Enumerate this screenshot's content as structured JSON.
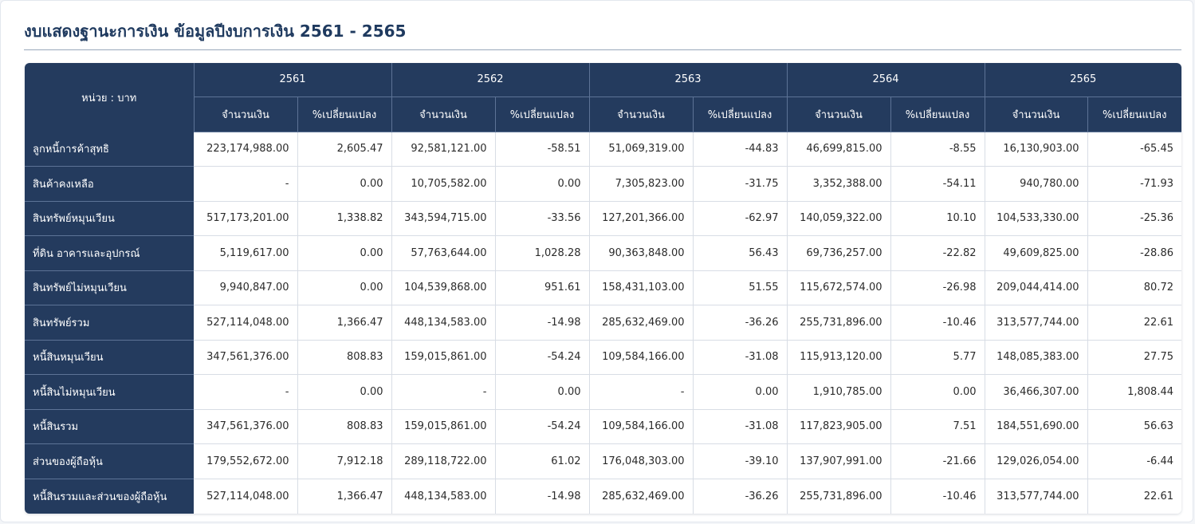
{
  "title": "งบแสดงฐานะการเงิน ข้อมูลปีงบการเงิน 2561 - 2565",
  "table": {
    "unit_label": "หน่วย : บาท",
    "years": [
      "2561",
      "2562",
      "2563",
      "2564",
      "2565"
    ],
    "sub_headers": {
      "amount": "จำนวนเงิน",
      "change": "%เปลี่ยนแปลง"
    },
    "rows": [
      {
        "label": "ลูกหนี้การค้าสุทธิ",
        "cells": [
          "223,174,988.00",
          "2,605.47",
          "92,581,121.00",
          "-58.51",
          "51,069,319.00",
          "-44.83",
          "46,699,815.00",
          "-8.55",
          "16,130,903.00",
          "-65.45"
        ]
      },
      {
        "label": "สินค้าคงเหลือ",
        "cells": [
          "-",
          "0.00",
          "10,705,582.00",
          "0.00",
          "7,305,823.00",
          "-31.75",
          "3,352,388.00",
          "-54.11",
          "940,780.00",
          "-71.93"
        ]
      },
      {
        "label": "สินทรัพย์หมุนเวียน",
        "cells": [
          "517,173,201.00",
          "1,338.82",
          "343,594,715.00",
          "-33.56",
          "127,201,366.00",
          "-62.97",
          "140,059,322.00",
          "10.10",
          "104,533,330.00",
          "-25.36"
        ]
      },
      {
        "label": "ที่ดิน อาคารและอุปกรณ์",
        "cells": [
          "5,119,617.00",
          "0.00",
          "57,763,644.00",
          "1,028.28",
          "90,363,848.00",
          "56.43",
          "69,736,257.00",
          "-22.82",
          "49,609,825.00",
          "-28.86"
        ]
      },
      {
        "label": "สินทรัพย์ไม่หมุนเวียน",
        "cells": [
          "9,940,847.00",
          "0.00",
          "104,539,868.00",
          "951.61",
          "158,431,103.00",
          "51.55",
          "115,672,574.00",
          "-26.98",
          "209,044,414.00",
          "80.72"
        ]
      },
      {
        "label": "สินทรัพย์รวม",
        "cells": [
          "527,114,048.00",
          "1,366.47",
          "448,134,583.00",
          "-14.98",
          "285,632,469.00",
          "-36.26",
          "255,731,896.00",
          "-10.46",
          "313,577,744.00",
          "22.61"
        ]
      },
      {
        "label": "หนี้สินหมุนเวียน",
        "cells": [
          "347,561,376.00",
          "808.83",
          "159,015,861.00",
          "-54.24",
          "109,584,166.00",
          "-31.08",
          "115,913,120.00",
          "5.77",
          "148,085,383.00",
          "27.75"
        ]
      },
      {
        "label": "หนี้สินไม่หมุนเวียน",
        "cells": [
          "-",
          "0.00",
          "-",
          "0.00",
          "-",
          "0.00",
          "1,910,785.00",
          "0.00",
          "36,466,307.00",
          "1,808.44"
        ]
      },
      {
        "label": "หนี้สินรวม",
        "cells": [
          "347,561,376.00",
          "808.83",
          "159,015,861.00",
          "-54.24",
          "109,584,166.00",
          "-31.08",
          "117,823,905.00",
          "7.51",
          "184,551,690.00",
          "56.63"
        ]
      },
      {
        "label": "ส่วนของผู้ถือหุ้น",
        "cells": [
          "179,552,672.00",
          "7,912.18",
          "289,118,722.00",
          "61.02",
          "176,048,303.00",
          "-39.10",
          "137,907,991.00",
          "-21.66",
          "129,026,054.00",
          "-6.44"
        ]
      },
      {
        "label": "หนี้สินรวมและส่วนของผู้ถือหุ้น",
        "cells": [
          "527,114,048.00",
          "1,366.47",
          "448,134,583.00",
          "-14.98",
          "285,632,469.00",
          "-36.26",
          "255,731,896.00",
          "-10.46",
          "313,577,744.00",
          "22.61"
        ]
      }
    ]
  }
}
